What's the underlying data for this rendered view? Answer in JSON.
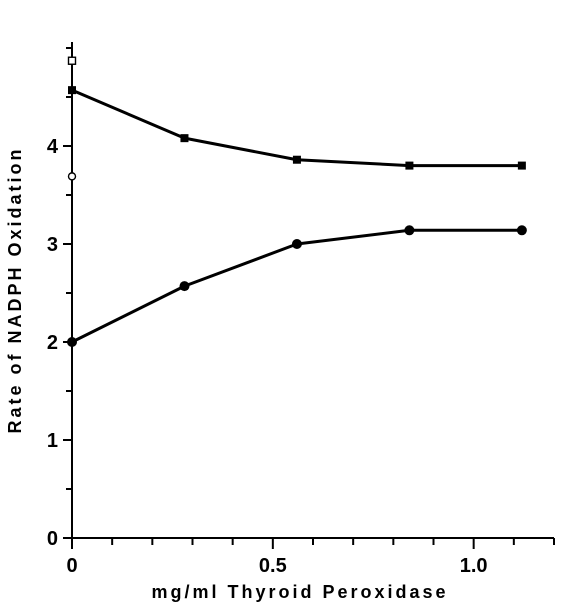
{
  "chart_data": {
    "type": "line",
    "title": "",
    "xlabel": "mg/ml Thyroid Peroxidase",
    "ylabel": "Rate of NADPH Oxidation",
    "xlim": [
      0,
      1.2
    ],
    "ylim": [
      0,
      5
    ],
    "grid": false,
    "x_ticks": [
      0,
      0.5,
      1.0
    ],
    "x_tick_labels": [
      "0",
      "0.5",
      "1.0"
    ],
    "x_minor_step": 0.1,
    "y_ticks": [
      0,
      1,
      2,
      3,
      4
    ],
    "y_tick_labels": [
      "0",
      "1",
      "2",
      "3",
      "4"
    ],
    "y_minor_step": 0.5,
    "series": [
      {
        "marker": "filled-square",
        "x": [
          0,
          0.28,
          0.56,
          0.84,
          1.12
        ],
        "y": [
          4.57,
          4.08,
          3.86,
          3.8,
          3.8
        ]
      },
      {
        "marker": "filled-circle",
        "x": [
          0,
          0.28,
          0.56,
          0.84,
          1.12
        ],
        "y": [
          2.0,
          2.57,
          3.0,
          3.14,
          3.14
        ]
      }
    ],
    "extra_points": [
      {
        "marker": "open-square",
        "x": 0,
        "y": 4.87
      },
      {
        "marker": "open-circle",
        "x": 0,
        "y": 3.69
      }
    ],
    "colors": {
      "line": "#000000",
      "background": "#ffffff"
    }
  }
}
